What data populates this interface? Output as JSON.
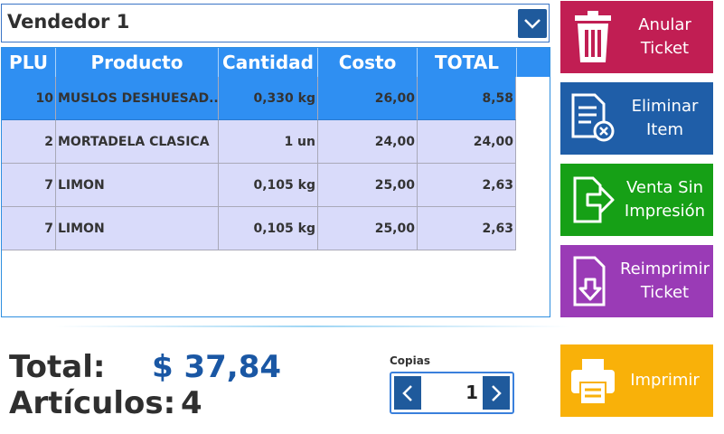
{
  "seller": {
    "name": "Vendedor 1"
  },
  "table": {
    "headers": [
      "PLU",
      "Producto",
      "Cantidad",
      "Costo",
      "TOTAL"
    ],
    "rows": [
      {
        "plu": "10",
        "producto": "MUSLOS DESHUESAD...",
        "cantidad": "0,330 kg",
        "costo": "26,00",
        "total": "8,58"
      },
      {
        "plu": "2",
        "producto": "MORTADELA CLASICA",
        "cantidad": "1 un",
        "costo": "24,00",
        "total": "24,00"
      },
      {
        "plu": "7",
        "producto": "LIMON",
        "cantidad": "0,105 kg",
        "costo": "25,00",
        "total": "2,63"
      },
      {
        "plu": "7",
        "producto": "LIMON",
        "cantidad": "0,105 kg",
        "costo": "25,00",
        "total": "2,63"
      }
    ]
  },
  "summary": {
    "total_label": "Total:",
    "total_value": "$ 37,84",
    "articles_label": "Artículos:",
    "articles_value": "4"
  },
  "copies": {
    "label": "Copias",
    "value": "1"
  },
  "actions": [
    {
      "label": "Anular\nTicket",
      "icon": "trash-icon",
      "color": "#c11e53"
    },
    {
      "label": "Eliminar\nItem",
      "icon": "delete-document-icon",
      "color": "#1f5ea8"
    },
    {
      "label": "Venta Sin\nImpresión",
      "icon": "export-document-icon",
      "color": "#16a016"
    },
    {
      "label": "Reimprimir\nTicket",
      "icon": "download-document-icon",
      "color": "#9a3bb6"
    },
    {
      "label": "Imprimir",
      "icon": "printer-icon",
      "color": "#f9b109"
    }
  ]
}
